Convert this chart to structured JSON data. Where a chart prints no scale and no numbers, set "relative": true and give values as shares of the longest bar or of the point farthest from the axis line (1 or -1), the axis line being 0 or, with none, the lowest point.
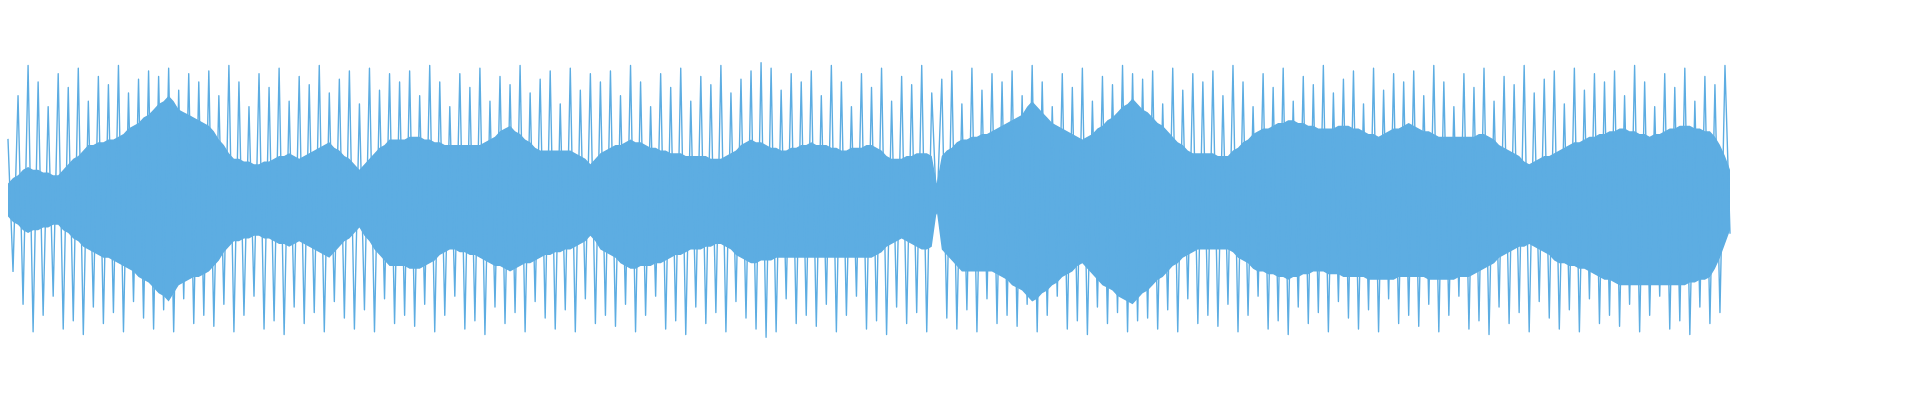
{
  "chart_data": {
    "type": "line",
    "relative": true,
    "categories": [
      null,
      null,
      null,
      null,
      null,
      null,
      null,
      null,
      null,
      null,
      null,
      null,
      null,
      null,
      null,
      null,
      null,
      null,
      null,
      null,
      null,
      null,
      null,
      null,
      null,
      null,
      null,
      null,
      null,
      null,
      null,
      null,
      null,
      null,
      null,
      null,
      null,
      null,
      null,
      null,
      null,
      null,
      null,
      null,
      null,
      null,
      null,
      null,
      null,
      null,
      null,
      null,
      null,
      null,
      null,
      null,
      null,
      null,
      null,
      null,
      null,
      null,
      null,
      null,
      null,
      null,
      null,
      null,
      null,
      null,
      null,
      null,
      null,
      null,
      null,
      null,
      null,
      null,
      null,
      null,
      null,
      null,
      null,
      null,
      null,
      null,
      null,
      null,
      null,
      null,
      null,
      null,
      null,
      null,
      null,
      null,
      null,
      null,
      null,
      null,
      null,
      null,
      null,
      null,
      null,
      null,
      null,
      null,
      null,
      null,
      null,
      null,
      null,
      null,
      null,
      null,
      null,
      null,
      null,
      null,
      null,
      null,
      null,
      null,
      null,
      null,
      null,
      null,
      null,
      null,
      null,
      null,
      null,
      null,
      null,
      null,
      null,
      null,
      null,
      null,
      null,
      null,
      null,
      null,
      null,
      null,
      null,
      null,
      null,
      null,
      null,
      null,
      null,
      null,
      null,
      null,
      null,
      null,
      null,
      null,
      null,
      null,
      null,
      null,
      null,
      null,
      null,
      null,
      null,
      null,
      null,
      null,
      null,
      null,
      null,
      null,
      null,
      null,
      null,
      null,
      null,
      null,
      null,
      null,
      null,
      null,
      null,
      null,
      null,
      null,
      null,
      null,
      null,
      null,
      null,
      null,
      null,
      null,
      null,
      null,
      null,
      null,
      null,
      null,
      null,
      null,
      null,
      null,
      null,
      null,
      null,
      null,
      null,
      null,
      null,
      null,
      null,
      null,
      null,
      null,
      null,
      null,
      null,
      null,
      null,
      null,
      null,
      null,
      null,
      null,
      null,
      null,
      null,
      null,
      null,
      null,
      null,
      null,
      null,
      null,
      null,
      null,
      null,
      null,
      null,
      null,
      null,
      null,
      null,
      null,
      null,
      null,
      null,
      null,
      null,
      null,
      null,
      null,
      null,
      null,
      null,
      null,
      null,
      null,
      null,
      null,
      null,
      null,
      null,
      null,
      null,
      null,
      null,
      null,
      null,
      null,
      null,
      null,
      null,
      null,
      null,
      null,
      null,
      null,
      null,
      null,
      null,
      null,
      null,
      null,
      null,
      null,
      null,
      null,
      null,
      null,
      null,
      null,
      null,
      null,
      null,
      null,
      null,
      null,
      null,
      null,
      null,
      null,
      null,
      null,
      null,
      null,
      null,
      null,
      null,
      null,
      null,
      null,
      null,
      null,
      null,
      null,
      null,
      null,
      null,
      null,
      null,
      null,
      null,
      null,
      null,
      null,
      null,
      null,
      null,
      null,
      null,
      null,
      null,
      null,
      null,
      null,
      null,
      null
    ],
    "series": [
      {
        "color": "#5dade2",
        "values": [
          0.72,
          0.24,
          0.88,
          0.12,
          0.99,
          0.02,
          0.93,
          0.08,
          0.84,
          0.15,
          0.96,
          0.03,
          0.91,
          0.06,
          0.98,
          0.01,
          0.86,
          0.11,
          0.95,
          0.05,
          0.92,
          0.09,
          0.99,
          0.02,
          0.89,
          0.13,
          0.94,
          0.07,
          0.97,
          0.03,
          0.95,
          0.1,
          0.98,
          0.02,
          0.9,
          0.14,
          0.96,
          0.05,
          0.93,
          0.08,
          0.97,
          0.04,
          0.88,
          0.12,
          0.99,
          0.02,
          0.93,
          0.08,
          0.84,
          0.15,
          0.96,
          0.03,
          0.91,
          0.06,
          0.98,
          0.01,
          0.86,
          0.11,
          0.95,
          0.05,
          0.92,
          0.09,
          0.99,
          0.02,
          0.89,
          0.13,
          0.94,
          0.07,
          0.97,
          0.03,
          0.85,
          0.1,
          0.98,
          0.02,
          0.9,
          0.14,
          0.96,
          0.05,
          0.93,
          0.08,
          0.97,
          0.04,
          0.88,
          0.12,
          0.99,
          0.02,
          0.93,
          0.08,
          0.84,
          0.15,
          0.96,
          0.03,
          0.91,
          0.06,
          0.98,
          0.01,
          0.86,
          0.11,
          0.95,
          0.05,
          0.92,
          0.09,
          0.99,
          0.02,
          0.89,
          0.13,
          0.94,
          0.07,
          0.97,
          0.03,
          0.85,
          0.1,
          0.98,
          0.02,
          0.9,
          0.14,
          0.96,
          0.05,
          0.93,
          0.08,
          0.97,
          0.04,
          0.88,
          0.12,
          0.99,
          0.02,
          0.93,
          0.08,
          0.84,
          0.15,
          0.96,
          0.03,
          0.91,
          0.06,
          0.98,
          0.01,
          0.86,
          0.11,
          0.95,
          0.05,
          0.92,
          0.09,
          0.99,
          0.02,
          0.89,
          0.13,
          0.94,
          0.07,
          0.97,
          0.03,
          1.0,
          0.0,
          0.98,
          0.02,
          0.9,
          0.14,
          0.96,
          0.05,
          0.93,
          0.08,
          0.97,
          0.04,
          0.88,
          0.12,
          0.99,
          0.02,
          0.93,
          0.08,
          0.84,
          0.15,
          0.96,
          0.03,
          0.91,
          0.06,
          0.98,
          0.01,
          0.86,
          0.11,
          0.95,
          0.05,
          0.92,
          0.09,
          0.99,
          0.02,
          0.89,
          0.45,
          0.94,
          0.07,
          0.97,
          0.03,
          0.85,
          0.1,
          0.98,
          0.02,
          0.9,
          0.14,
          0.96,
          0.05,
          0.93,
          0.08,
          0.97,
          0.04,
          0.88,
          0.12,
          0.99,
          0.02,
          0.93,
          0.08,
          0.84,
          0.15,
          0.96,
          0.03,
          0.91,
          0.06,
          0.98,
          0.01,
          0.86,
          0.11,
          0.95,
          0.05,
          0.92,
          0.09,
          0.99,
          0.02,
          0.96,
          0.06,
          0.94,
          0.07,
          0.97,
          0.03,
          0.85,
          0.1,
          0.98,
          0.02,
          0.9,
          0.14,
          0.96,
          0.05,
          0.93,
          0.08,
          0.97,
          0.04,
          0.88,
          0.12,
          0.99,
          0.02,
          0.93,
          0.08,
          0.84,
          0.15,
          0.96,
          0.03,
          0.91,
          0.06,
          0.98,
          0.01,
          0.86,
          0.11,
          0.95,
          0.05,
          0.92,
          0.09,
          0.99,
          0.02,
          0.89,
          0.13,
          0.94,
          0.07,
          0.97,
          0.03,
          0.85,
          0.1,
          0.98,
          0.02,
          0.9,
          0.14,
          0.96,
          0.05,
          0.93,
          0.08,
          0.97,
          0.04,
          0.88,
          0.12,
          0.99,
          0.02,
          0.93,
          0.08,
          0.84,
          0.15,
          0.96,
          0.03,
          0.91,
          0.06,
          0.98,
          0.01,
          0.86,
          0.11,
          0.95,
          0.05,
          0.92,
          0.09,
          0.99,
          0.02,
          0.89,
          0.13,
          0.94,
          0.07,
          0.97,
          0.03,
          0.85,
          0.1,
          0.98,
          0.02,
          0.9,
          0.14,
          0.96,
          0.05,
          0.93,
          0.08,
          0.97,
          0.04,
          0.88,
          0.12,
          0.99,
          0.02,
          0.93,
          0.08,
          0.84,
          0.15,
          0.96,
          0.03,
          0.91,
          0.06,
          0.98,
          0.01,
          0.86,
          0.11,
          0.95,
          0.05,
          0.92,
          0.09,
          0.99,
          0.38
        ],
        "lower": [
          0.44,
          0.42,
          0.41,
          0.39,
          0.38,
          0.39,
          0.39,
          0.4,
          0.4,
          0.41,
          0.41,
          0.39,
          0.38,
          0.36,
          0.35,
          0.33,
          0.32,
          0.31,
          0.3,
          0.29,
          0.29,
          0.28,
          0.27,
          0.26,
          0.25,
          0.24,
          0.22,
          0.21,
          0.2,
          0.18,
          0.16,
          0.15,
          0.13,
          0.16,
          0.19,
          0.2,
          0.21,
          0.22,
          0.22,
          0.23,
          0.24,
          0.26,
          0.28,
          0.31,
          0.33,
          0.35,
          0.35,
          0.36,
          0.36,
          0.37,
          0.37,
          0.36,
          0.36,
          0.35,
          0.34,
          0.34,
          0.33,
          0.34,
          0.35,
          0.34,
          0.33,
          0.32,
          0.31,
          0.3,
          0.29,
          0.31,
          0.33,
          0.35,
          0.36,
          0.38,
          0.4,
          0.37,
          0.35,
          0.32,
          0.3,
          0.28,
          0.26,
          0.26,
          0.26,
          0.26,
          0.25,
          0.25,
          0.25,
          0.26,
          0.27,
          0.28,
          0.3,
          0.31,
          0.32,
          0.32,
          0.31,
          0.31,
          0.3,
          0.3,
          0.29,
          0.28,
          0.27,
          0.26,
          0.26,
          0.25,
          0.24,
          0.25,
          0.26,
          0.27,
          0.27,
          0.28,
          0.29,
          0.3,
          0.3,
          0.31,
          0.31,
          0.32,
          0.32,
          0.33,
          0.34,
          0.35,
          0.37,
          0.35,
          0.32,
          0.31,
          0.3,
          0.29,
          0.27,
          0.26,
          0.25,
          0.25,
          0.26,
          0.26,
          0.26,
          0.27,
          0.27,
          0.28,
          0.29,
          0.3,
          0.3,
          0.31,
          0.32,
          0.32,
          0.32,
          0.33,
          0.33,
          0.34,
          0.34,
          0.33,
          0.32,
          0.3,
          0.29,
          0.28,
          0.27,
          0.27,
          0.28,
          0.28,
          0.28,
          0.29,
          0.29,
          0.29,
          0.29,
          0.29,
          0.29,
          0.29,
          0.29,
          0.29,
          0.29,
          0.29,
          0.29,
          0.29,
          0.29,
          0.29,
          0.29,
          0.29,
          0.29,
          0.29,
          0.29,
          0.3,
          0.31,
          0.33,
          0.34,
          0.35,
          0.36,
          0.35,
          0.34,
          0.33,
          0.32,
          0.32,
          0.33,
          0.46,
          0.32,
          0.3,
          0.28,
          0.26,
          0.24,
          0.24,
          0.24,
          0.24,
          0.24,
          0.24,
          0.24,
          0.23,
          0.22,
          0.21,
          0.19,
          0.18,
          0.17,
          0.15,
          0.13,
          0.14,
          0.16,
          0.17,
          0.19,
          0.2,
          0.22,
          0.23,
          0.24,
          0.26,
          0.27,
          0.25,
          0.23,
          0.21,
          0.19,
          0.18,
          0.17,
          0.15,
          0.14,
          0.13,
          0.12,
          0.14,
          0.16,
          0.17,
          0.19,
          0.21,
          0.22,
          0.24,
          0.26,
          0.27,
          0.29,
          0.3,
          0.31,
          0.32,
          0.32,
          0.32,
          0.32,
          0.32,
          0.32,
          0.32,
          0.31,
          0.29,
          0.28,
          0.27,
          0.25,
          0.24,
          0.24,
          0.23,
          0.23,
          0.22,
          0.22,
          0.21,
          0.22,
          0.22,
          0.23,
          0.23,
          0.24,
          0.24,
          0.24,
          0.23,
          0.23,
          0.23,
          0.22,
          0.22,
          0.22,
          0.22,
          0.22,
          0.21,
          0.21,
          0.21,
          0.21,
          0.21,
          0.21,
          0.22,
          0.22,
          0.22,
          0.22,
          0.22,
          0.22,
          0.21,
          0.21,
          0.21,
          0.21,
          0.21,
          0.21,
          0.22,
          0.22,
          0.22,
          0.23,
          0.24,
          0.25,
          0.26,
          0.27,
          0.29,
          0.3,
          0.31,
          0.32,
          0.33,
          0.33,
          0.34,
          0.33,
          0.32,
          0.31,
          0.3,
          0.28,
          0.27,
          0.27,
          0.26,
          0.26,
          0.25,
          0.25,
          0.24,
          0.23,
          0.22,
          0.21,
          0.21,
          0.2,
          0.19,
          0.19,
          0.19,
          0.19,
          0.19,
          0.19,
          0.19,
          0.19,
          0.19,
          0.19,
          0.19,
          0.19,
          0.19,
          0.19,
          0.2,
          0.2,
          0.21,
          0.21,
          0.22,
          0.25,
          0.29,
          0.34,
          0.39
        ],
        "upper": [
          0.56,
          0.58,
          0.59,
          0.61,
          0.62,
          0.61,
          0.61,
          0.6,
          0.6,
          0.59,
          0.59,
          0.61,
          0.63,
          0.65,
          0.66,
          0.68,
          0.7,
          0.7,
          0.71,
          0.71,
          0.72,
          0.72,
          0.73,
          0.74,
          0.76,
          0.77,
          0.78,
          0.8,
          0.81,
          0.83,
          0.85,
          0.86,
          0.88,
          0.86,
          0.83,
          0.82,
          0.81,
          0.8,
          0.79,
          0.78,
          0.77,
          0.75,
          0.72,
          0.7,
          0.67,
          0.65,
          0.65,
          0.64,
          0.64,
          0.63,
          0.63,
          0.64,
          0.64,
          0.65,
          0.66,
          0.66,
          0.67,
          0.66,
          0.65,
          0.66,
          0.67,
          0.68,
          0.69,
          0.7,
          0.71,
          0.69,
          0.68,
          0.66,
          0.65,
          0.63,
          0.61,
          0.63,
          0.65,
          0.67,
          0.69,
          0.7,
          0.72,
          0.72,
          0.72,
          0.72,
          0.73,
          0.73,
          0.73,
          0.72,
          0.72,
          0.71,
          0.71,
          0.7,
          0.7,
          0.7,
          0.7,
          0.7,
          0.7,
          0.7,
          0.7,
          0.71,
          0.72,
          0.73,
          0.75,
          0.76,
          0.77,
          0.75,
          0.74,
          0.72,
          0.71,
          0.69,
          0.68,
          0.68,
          0.68,
          0.68,
          0.68,
          0.68,
          0.68,
          0.67,
          0.66,
          0.65,
          0.63,
          0.65,
          0.67,
          0.68,
          0.69,
          0.7,
          0.7,
          0.71,
          0.72,
          0.71,
          0.71,
          0.7,
          0.69,
          0.69,
          0.68,
          0.68,
          0.67,
          0.67,
          0.67,
          0.66,
          0.66,
          0.66,
          0.66,
          0.66,
          0.65,
          0.65,
          0.65,
          0.66,
          0.67,
          0.68,
          0.7,
          0.71,
          0.72,
          0.71,
          0.71,
          0.7,
          0.69,
          0.69,
          0.68,
          0.68,
          0.69,
          0.69,
          0.7,
          0.7,
          0.71,
          0.7,
          0.7,
          0.7,
          0.69,
          0.69,
          0.68,
          0.68,
          0.69,
          0.69,
          0.69,
          0.7,
          0.7,
          0.69,
          0.68,
          0.66,
          0.65,
          0.65,
          0.65,
          0.66,
          0.66,
          0.67,
          0.67,
          0.67,
          0.66,
          0.56,
          0.66,
          0.68,
          0.69,
          0.71,
          0.72,
          0.72,
          0.73,
          0.73,
          0.74,
          0.74,
          0.75,
          0.76,
          0.77,
          0.78,
          0.79,
          0.8,
          0.81,
          0.84,
          0.86,
          0.84,
          0.82,
          0.8,
          0.78,
          0.77,
          0.76,
          0.75,
          0.74,
          0.73,
          0.72,
          0.73,
          0.74,
          0.76,
          0.77,
          0.79,
          0.8,
          0.82,
          0.84,
          0.85,
          0.87,
          0.85,
          0.83,
          0.82,
          0.8,
          0.78,
          0.77,
          0.75,
          0.73,
          0.71,
          0.7,
          0.68,
          0.67,
          0.67,
          0.67,
          0.67,
          0.67,
          0.66,
          0.66,
          0.66,
          0.68,
          0.69,
          0.71,
          0.72,
          0.74,
          0.75,
          0.76,
          0.76,
          0.77,
          0.78,
          0.78,
          0.79,
          0.79,
          0.78,
          0.78,
          0.77,
          0.77,
          0.76,
          0.76,
          0.76,
          0.76,
          0.77,
          0.77,
          0.77,
          0.76,
          0.76,
          0.75,
          0.74,
          0.74,
          0.73,
          0.74,
          0.75,
          0.76,
          0.76,
          0.77,
          0.78,
          0.77,
          0.76,
          0.75,
          0.75,
          0.74,
          0.73,
          0.73,
          0.73,
          0.73,
          0.73,
          0.73,
          0.73,
          0.73,
          0.74,
          0.74,
          0.73,
          0.72,
          0.7,
          0.69,
          0.68,
          0.67,
          0.66,
          0.64,
          0.63,
          0.64,
          0.65,
          0.66,
          0.66,
          0.67,
          0.68,
          0.69,
          0.7,
          0.71,
          0.71,
          0.72,
          0.73,
          0.73,
          0.74,
          0.74,
          0.75,
          0.75,
          0.76,
          0.76,
          0.75,
          0.75,
          0.74,
          0.74,
          0.73,
          0.74,
          0.74,
          0.75,
          0.76,
          0.76,
          0.77,
          0.77,
          0.77,
          0.76,
          0.76,
          0.75,
          0.75,
          0.73,
          0.7,
          0.66,
          0.61
        ]
      }
    ]
  }
}
